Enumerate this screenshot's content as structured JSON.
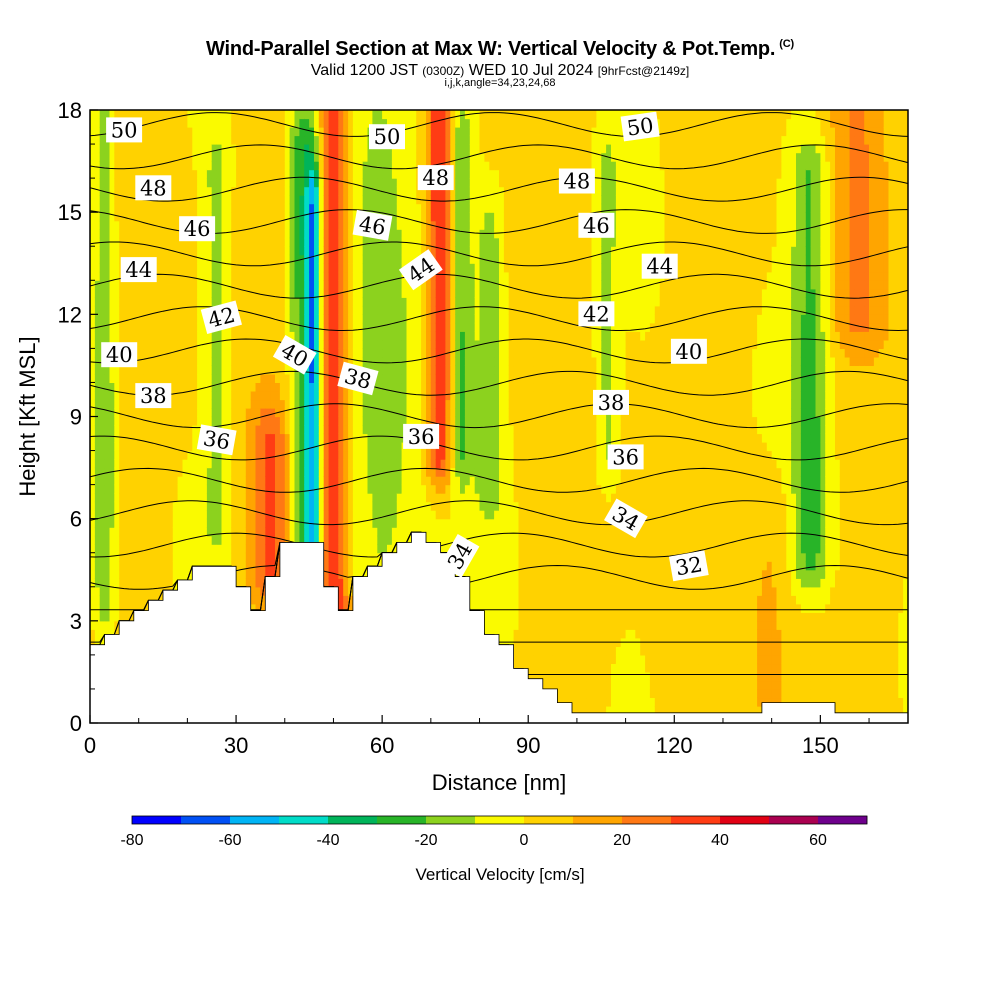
{
  "header": {
    "title": "Wind-Parallel Section at Max W: Vertical Velocity & Pot.Temp.",
    "copyright": "(C)",
    "valid_prefix": "Valid 1200 JST",
    "valid_zulu": "(0300Z)",
    "valid_date": "WED 10 Jul 2024",
    "forecast": "[9hrFcst@2149z]",
    "indices": "i,j,k,angle=34,23,24,68"
  },
  "chart_data": {
    "type": "heatmap",
    "xlabel": "Distance [nm]",
    "ylabel": "Height [Kft MSL]",
    "xlim": [
      0,
      168
    ],
    "ylim": [
      0,
      18
    ],
    "x_ticks": [
      0,
      30,
      60,
      90,
      120,
      150
    ],
    "y_ticks": [
      0,
      3,
      6,
      9,
      12,
      15,
      18
    ],
    "grid": false,
    "colorbar": {
      "title": "Vertical Velocity [cm/s]",
      "placement": "bottom",
      "tick_labels": [
        "-80",
        "-60",
        "-40",
        "-20",
        "0",
        "20",
        "40",
        "60"
      ],
      "bounds": [
        -80,
        -70,
        -60,
        -50,
        -40,
        -30,
        -20,
        -10,
        0,
        10,
        20,
        30,
        40,
        50,
        60,
        70
      ],
      "colors": [
        "#0000ff",
        "#0050f5",
        "#00b4f5",
        "#00dcc8",
        "#00b45a",
        "#28b428",
        "#8cd21e",
        "#fafa00",
        "#ffd200",
        "#ffa500",
        "#ff7814",
        "#ff3c14",
        "#e10014",
        "#aa0050",
        "#6e008c"
      ]
    },
    "vertical_velocity_features": [
      {
        "x": 3,
        "w": 2.5,
        "ztop": 18,
        "zbot": 3.5,
        "v": -20
      },
      {
        "x": 26,
        "w": 2.5,
        "ztop": 16,
        "zbot": 6,
        "v": -15
      },
      {
        "x": 37,
        "w": 4,
        "ztop": 8,
        "zbot": 4.5,
        "v": 25
      },
      {
        "x": 44,
        "w": 3,
        "ztop": 17,
        "zbot": 3,
        "v": -30
      },
      {
        "x": 46,
        "w": 1.5,
        "ztop": 15,
        "zbot": 5,
        "v": -48
      },
      {
        "x": 50,
        "w": 3,
        "ztop": 18,
        "zbot": 3.5,
        "v": 40
      },
      {
        "x": 62,
        "w": 10,
        "ztop": 18,
        "zbot": 5,
        "v": -15
      },
      {
        "x": 72,
        "w": 3,
        "ztop": 18,
        "zbot": 8,
        "v": 40
      },
      {
        "x": 76,
        "w": 2.5,
        "ztop": 17,
        "zbot": 8,
        "v": -25
      },
      {
        "x": 82,
        "w": 2.5,
        "ztop": 14,
        "zbot": 7,
        "v": -18
      },
      {
        "x": 106,
        "w": 2.5,
        "ztop": 16,
        "zbot": 8,
        "v": -15
      },
      {
        "x": 148,
        "w": 4,
        "ztop": 16,
        "zbot": 5,
        "v": -25
      },
      {
        "x": 158,
        "w": 6,
        "ztop": 18,
        "zbot": 12,
        "v": 15
      },
      {
        "x": 140,
        "w": 5,
        "ztop": 6,
        "zbot": 1,
        "v": 10
      }
    ],
    "terrain": [
      {
        "x": 0,
        "h": 2.3
      },
      {
        "x": 3,
        "h": 2.6
      },
      {
        "x": 6,
        "h": 3.0
      },
      {
        "x": 9,
        "h": 3.3
      },
      {
        "x": 12,
        "h": 3.6
      },
      {
        "x": 15,
        "h": 3.9
      },
      {
        "x": 18,
        "h": 4.2
      },
      {
        "x": 21,
        "h": 4.6
      },
      {
        "x": 30,
        "h": 4.0
      },
      {
        "x": 33,
        "h": 3.3
      },
      {
        "x": 36,
        "h": 4.3
      },
      {
        "x": 39,
        "h": 5.3
      },
      {
        "x": 48,
        "h": 4.0
      },
      {
        "x": 51,
        "h": 3.3
      },
      {
        "x": 54,
        "h": 4.3
      },
      {
        "x": 57,
        "h": 4.6
      },
      {
        "x": 60,
        "h": 5.0
      },
      {
        "x": 63,
        "h": 5.3
      },
      {
        "x": 66,
        "h": 5.6
      },
      {
        "x": 69,
        "h": 5.3
      },
      {
        "x": 72,
        "h": 5.0
      },
      {
        "x": 75,
        "h": 4.3
      },
      {
        "x": 78,
        "h": 3.3
      },
      {
        "x": 81,
        "h": 2.6
      },
      {
        "x": 84,
        "h": 2.3
      },
      {
        "x": 87,
        "h": 1.6
      },
      {
        "x": 90,
        "h": 1.3
      },
      {
        "x": 93,
        "h": 1.0
      },
      {
        "x": 96,
        "h": 0.6
      },
      {
        "x": 99,
        "h": 0.3
      },
      {
        "x": 138,
        "h": 0.6
      },
      {
        "x": 153,
        "h": 0.3
      },
      {
        "x": 168,
        "h": 0.3
      }
    ],
    "theta_contours": {
      "levels": [
        32,
        33,
        34,
        35,
        36,
        37,
        38,
        39,
        40,
        41,
        42,
        43,
        44,
        45,
        46,
        47,
        48,
        49,
        50,
        51
      ],
      "labels": [
        {
          "x": 7,
          "z": 17.4,
          "text": "50",
          "angle": 0
        },
        {
          "x": 61,
          "z": 17.2,
          "text": "50",
          "angle": 0
        },
        {
          "x": 113,
          "z": 17.5,
          "text": "50",
          "angle": -8
        },
        {
          "x": 13,
          "z": 15.7,
          "text": "48",
          "angle": 0
        },
        {
          "x": 71,
          "z": 16.0,
          "text": "48",
          "angle": 0
        },
        {
          "x": 100,
          "z": 15.9,
          "text": "48",
          "angle": 0
        },
        {
          "x": 22,
          "z": 14.5,
          "text": "46",
          "angle": 0
        },
        {
          "x": 58,
          "z": 14.6,
          "text": "46",
          "angle": 10
        },
        {
          "x": 104,
          "z": 14.6,
          "text": "46",
          "angle": 0
        },
        {
          "x": 10,
          "z": 13.3,
          "text": "44",
          "angle": 0
        },
        {
          "x": 68,
          "z": 13.3,
          "text": "44",
          "angle": -35
        },
        {
          "x": 117,
          "z": 13.4,
          "text": "44",
          "angle": 0
        },
        {
          "x": 27,
          "z": 11.9,
          "text": "42",
          "angle": -15
        },
        {
          "x": 104,
          "z": 12.0,
          "text": "42",
          "angle": 0
        },
        {
          "x": 6,
          "z": 10.8,
          "text": "40",
          "angle": 0
        },
        {
          "x": 42,
          "z": 10.8,
          "text": "40",
          "angle": 30
        },
        {
          "x": 123,
          "z": 10.9,
          "text": "40",
          "angle": 0
        },
        {
          "x": 13,
          "z": 9.6,
          "text": "38",
          "angle": 0
        },
        {
          "x": 55,
          "z": 10.1,
          "text": "38",
          "angle": 15
        },
        {
          "x": 107,
          "z": 9.4,
          "text": "38",
          "angle": 0
        },
        {
          "x": 26,
          "z": 8.3,
          "text": "36",
          "angle": 10
        },
        {
          "x": 68,
          "z": 8.4,
          "text": "36",
          "angle": 0
        },
        {
          "x": 110,
          "z": 7.8,
          "text": "36",
          "angle": 0
        },
        {
          "x": 110,
          "z": 6.0,
          "text": "34",
          "angle": 30
        },
        {
          "x": 76,
          "z": 4.9,
          "text": "34",
          "angle": -60
        },
        {
          "x": 123,
          "z": 4.6,
          "text": "32",
          "angle": -10
        }
      ]
    }
  }
}
